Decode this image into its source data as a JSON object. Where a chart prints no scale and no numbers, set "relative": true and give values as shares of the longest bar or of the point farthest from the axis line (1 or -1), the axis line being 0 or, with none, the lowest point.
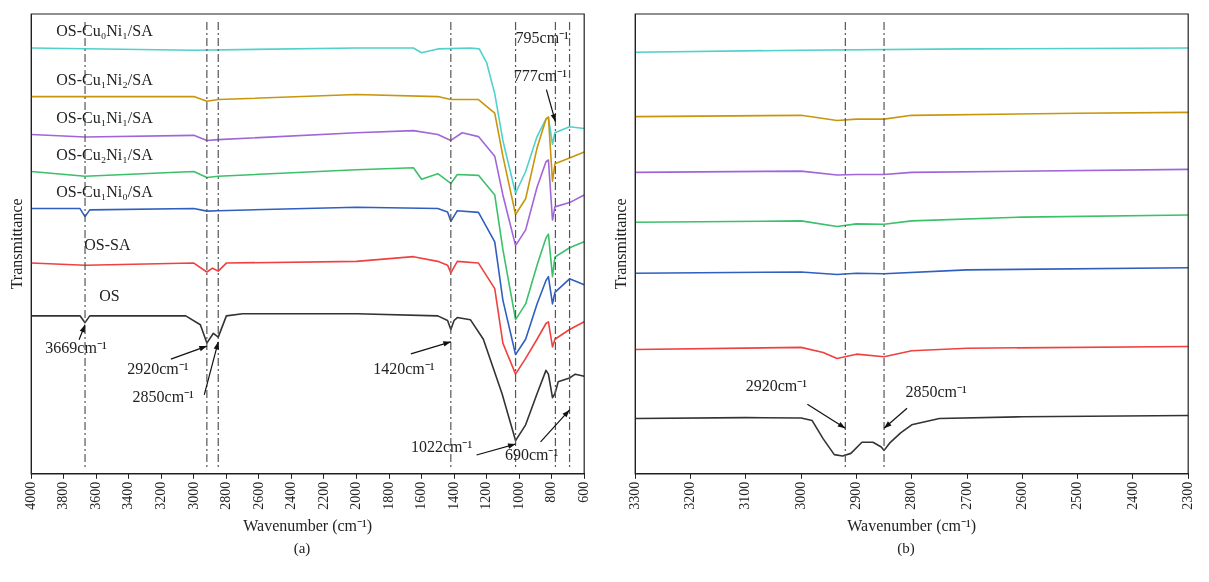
{
  "chart_data": [
    {
      "type": "line",
      "xlabel": "Wavenumber (cm⁻¹)",
      "ylabel": "Transmittance",
      "relative": true,
      "xlim": [
        4000,
        600
      ],
      "xticks": [
        4000,
        3800,
        3600,
        3400,
        3200,
        3000,
        2800,
        2600,
        2400,
        2200,
        2000,
        1800,
        1600,
        1400,
        1200,
        1000,
        800,
        600
      ],
      "legend": false,
      "series": [
        {
          "name": "OS",
          "color": "#333333",
          "x": [
            4000,
            3700,
            3669,
            3640,
            3050,
            2960,
            2920,
            2880,
            2850,
            2800,
            2700,
            2000,
            1500,
            1440,
            1420,
            1400,
            1380,
            1300,
            1220,
            1105,
            1022,
            960,
            890,
            835,
            820,
            795,
            780,
            760,
            690,
            655,
            600
          ],
          "values": [
            0.371,
            0.371,
            0.355,
            0.371,
            0.371,
            0.35,
            0.307,
            0.33,
            0.321,
            0.371,
            0.376,
            0.376,
            0.371,
            0.36,
            0.339,
            0.36,
            0.367,
            0.362,
            0.316,
            0.188,
            0.078,
            0.115,
            0.188,
            0.243,
            0.234,
            0.179,
            0.188,
            0.216,
            0.225,
            0.234,
            0.229
          ]
        },
        {
          "name": "OS-SA",
          "color": "#f04040",
          "x": [
            4000,
            3669,
            3000,
            2920,
            2885,
            2850,
            2800,
            2000,
            1650,
            1500,
            1440,
            1420,
            1380,
            1250,
            1150,
            1100,
            1022,
            960,
            890,
            835,
            820,
            795,
            780,
            690,
            600
          ],
          "values": [
            0.495,
            0.49,
            0.495,
            0.474,
            0.483,
            0.476,
            0.495,
            0.499,
            0.51,
            0.499,
            0.49,
            0.472,
            0.499,
            0.495,
            0.435,
            0.307,
            0.234,
            0.271,
            0.316,
            0.353,
            0.357,
            0.298,
            0.316,
            0.339,
            0.357
          ]
        },
        {
          "name": "OS-Cu₁Ni₀/SA",
          "color": "#2f5fbf",
          "x": [
            4000,
            3700,
            3669,
            3640,
            3000,
            2920,
            2850,
            2000,
            1500,
            1440,
            1420,
            1380,
            1250,
            1150,
            1100,
            1022,
            960,
            890,
            835,
            820,
            795,
            780,
            690,
            600
          ],
          "values": [
            0.623,
            0.623,
            0.604,
            0.62,
            0.623,
            0.617,
            0.618,
            0.626,
            0.623,
            0.615,
            0.593,
            0.618,
            0.614,
            0.545,
            0.408,
            0.28,
            0.316,
            0.399,
            0.454,
            0.463,
            0.399,
            0.426,
            0.458,
            0.444
          ]
        },
        {
          "name": "OS-Cu₂Ni₁/SA",
          "color": "#3cc06a",
          "x": [
            4000,
            3669,
            3000,
            2920,
            2850,
            2000,
            1650,
            1600,
            1500,
            1420,
            1380,
            1250,
            1150,
            1100,
            1022,
            960,
            890,
            835,
            820,
            795,
            780,
            690,
            600
          ],
          "values": [
            0.71,
            0.699,
            0.71,
            0.696,
            0.699,
            0.714,
            0.719,
            0.692,
            0.705,
            0.682,
            0.703,
            0.701,
            0.655,
            0.527,
            0.362,
            0.399,
            0.49,
            0.554,
            0.563,
            0.463,
            0.509,
            0.531,
            0.545
          ]
        },
        {
          "name": "OS-Cu₁Ni₁/SA",
          "color": "#a066d8",
          "x": [
            4000,
            3669,
            3000,
            2920,
            2850,
            2000,
            1650,
            1500,
            1420,
            1350,
            1250,
            1150,
            1100,
            1022,
            960,
            890,
            835,
            820,
            795,
            780,
            690,
            600
          ],
          "values": [
            0.797,
            0.791,
            0.795,
            0.783,
            0.785,
            0.801,
            0.806,
            0.797,
            0.783,
            0.801,
            0.792,
            0.746,
            0.655,
            0.536,
            0.573,
            0.673,
            0.733,
            0.737,
            0.596,
            0.627,
            0.637,
            0.655
          ]
        },
        {
          "name": "OS-Cu₁Ni₂/SA",
          "color": "#c8960c",
          "x": [
            4000,
            3000,
            2920,
            2850,
            2000,
            1500,
            1420,
            1250,
            1150,
            1100,
            1022,
            960,
            890,
            835,
            820,
            795,
            780,
            690,
            600
          ],
          "values": [
            0.886,
            0.886,
            0.875,
            0.879,
            0.891,
            0.886,
            0.879,
            0.879,
            0.847,
            0.746,
            0.609,
            0.646,
            0.765,
            0.833,
            0.838,
            0.687,
            0.728,
            0.742,
            0.756
          ]
        },
        {
          "name": "OS-Cu₀Ni₁/SA",
          "color": "#4fd1cc",
          "x": [
            4000,
            3000,
            2000,
            1650,
            1600,
            1500,
            1300,
            1245,
            1200,
            1150,
            1100,
            1022,
            960,
            890,
            835,
            820,
            795,
            780,
            690,
            600
          ],
          "values": [
            1.0,
            0.995,
            1.0,
            1.0,
            0.989,
            0.998,
            1.0,
            0.998,
            0.966,
            0.893,
            0.783,
            0.659,
            0.71,
            0.792,
            0.833,
            0.838,
            0.774,
            0.801,
            0.815,
            0.811
          ]
        }
      ],
      "ref_lines": [
        {
          "axis": "x",
          "value": 3669,
          "line_style": "dashed",
          "color": "#555555"
        },
        {
          "axis": "x",
          "value": 2920,
          "line_style": "dashed",
          "color": "#555555"
        },
        {
          "axis": "x",
          "value": 2850,
          "line_style": "dashed",
          "color": "#555555"
        },
        {
          "axis": "x",
          "value": 1420,
          "line_style": "dashed",
          "color": "#555555"
        },
        {
          "axis": "x",
          "value": 1022,
          "line_style": "dashed",
          "color": "#555555"
        },
        {
          "axis": "x",
          "value": 777,
          "line_style": "dashed",
          "color": "#555555"
        },
        {
          "axis": "x",
          "value": 690,
          "line_style": "dashed",
          "color": "#555555"
        }
      ],
      "annotations": [
        {
          "text": "3669cm⁻¹",
          "x": 3669,
          "y": 0.35
        },
        {
          "text": "2920cm⁻¹",
          "x": 2920,
          "y": 0.3
        },
        {
          "text": "2850cm⁻¹",
          "x": 2850,
          "y": 0.31
        },
        {
          "text": "1420cm⁻¹",
          "x": 1420,
          "y": 0.31
        },
        {
          "text": "1022cm⁻¹",
          "x": 1022,
          "y": 0.07
        },
        {
          "text": "690cm⁻¹",
          "x": 690,
          "y": 0.15
        },
        {
          "text": "777cm⁻¹",
          "x": 777,
          "y": 0.827
        },
        "795cm⁻¹",
        "(a)"
      ]
    },
    {
      "type": "line",
      "xlabel": "Wavenumber (cm⁻¹)",
      "ylabel": "Transmittance",
      "relative": true,
      "xlim": [
        3300,
        2300
      ],
      "xticks": [
        3300,
        3200,
        3100,
        3000,
        2900,
        2800,
        2700,
        2600,
        2500,
        2400,
        2300
      ],
      "legend": false,
      "series": [
        {
          "color": "#333333",
          "x": [
            3300,
            3100,
            3000,
            2980,
            2960,
            2940,
            2925,
            2910,
            2890,
            2870,
            2855,
            2850,
            2840,
            2820,
            2800,
            2750,
            2600,
            2300
          ],
          "values": [
            0.13,
            0.132,
            0.131,
            0.125,
            0.082,
            0.045,
            0.042,
            0.048,
            0.074,
            0.074,
            0.063,
            0.055,
            0.072,
            0.096,
            0.115,
            0.13,
            0.134,
            0.137
          ]
        },
        {
          "color": "#f04040",
          "x": [
            3300,
            3000,
            2960,
            2935,
            2900,
            2850,
            2800,
            2700,
            2300
          ],
          "values": [
            0.292,
            0.297,
            0.285,
            0.271,
            0.281,
            0.275,
            0.289,
            0.295,
            0.299
          ]
        },
        {
          "color": "#2f5fbf",
          "x": [
            3300,
            3000,
            2935,
            2900,
            2850,
            2700,
            2300
          ],
          "values": [
            0.471,
            0.474,
            0.468,
            0.471,
            0.47,
            0.479,
            0.484
          ]
        },
        {
          "color": "#3cc06a",
          "x": [
            3300,
            3000,
            2935,
            2900,
            2850,
            2800,
            2600,
            2300
          ],
          "values": [
            0.591,
            0.594,
            0.581,
            0.587,
            0.586,
            0.594,
            0.603,
            0.608
          ]
        },
        {
          "color": "#a066d8",
          "x": [
            3300,
            3000,
            2935,
            2900,
            2850,
            2800,
            2300
          ],
          "values": [
            0.708,
            0.711,
            0.702,
            0.703,
            0.703,
            0.708,
            0.715
          ]
        },
        {
          "color": "#c8960c",
          "x": [
            3300,
            3000,
            2935,
            2900,
            2850,
            2800,
            2500,
            2300
          ],
          "values": [
            0.839,
            0.842,
            0.83,
            0.833,
            0.833,
            0.842,
            0.847,
            0.849
          ]
        },
        {
          "color": "#4fd1cc",
          "x": [
            3300,
            3000,
            2700,
            2300
          ],
          "values": [
            0.99,
            0.995,
            0.998,
            1.0
          ]
        }
      ],
      "ref_lines": [
        {
          "axis": "x",
          "value": 2920,
          "line_style": "dashed",
          "color": "#555555"
        },
        {
          "axis": "x",
          "value": 2850,
          "line_style": "dashed",
          "color": "#555555"
        }
      ],
      "annotations": [
        {
          "text": "2920cm⁻¹",
          "x": 2920,
          "y": 0.107
        },
        {
          "text": "2850cm⁻¹",
          "x": 2850,
          "y": 0.107
        },
        "(b)"
      ]
    }
  ]
}
